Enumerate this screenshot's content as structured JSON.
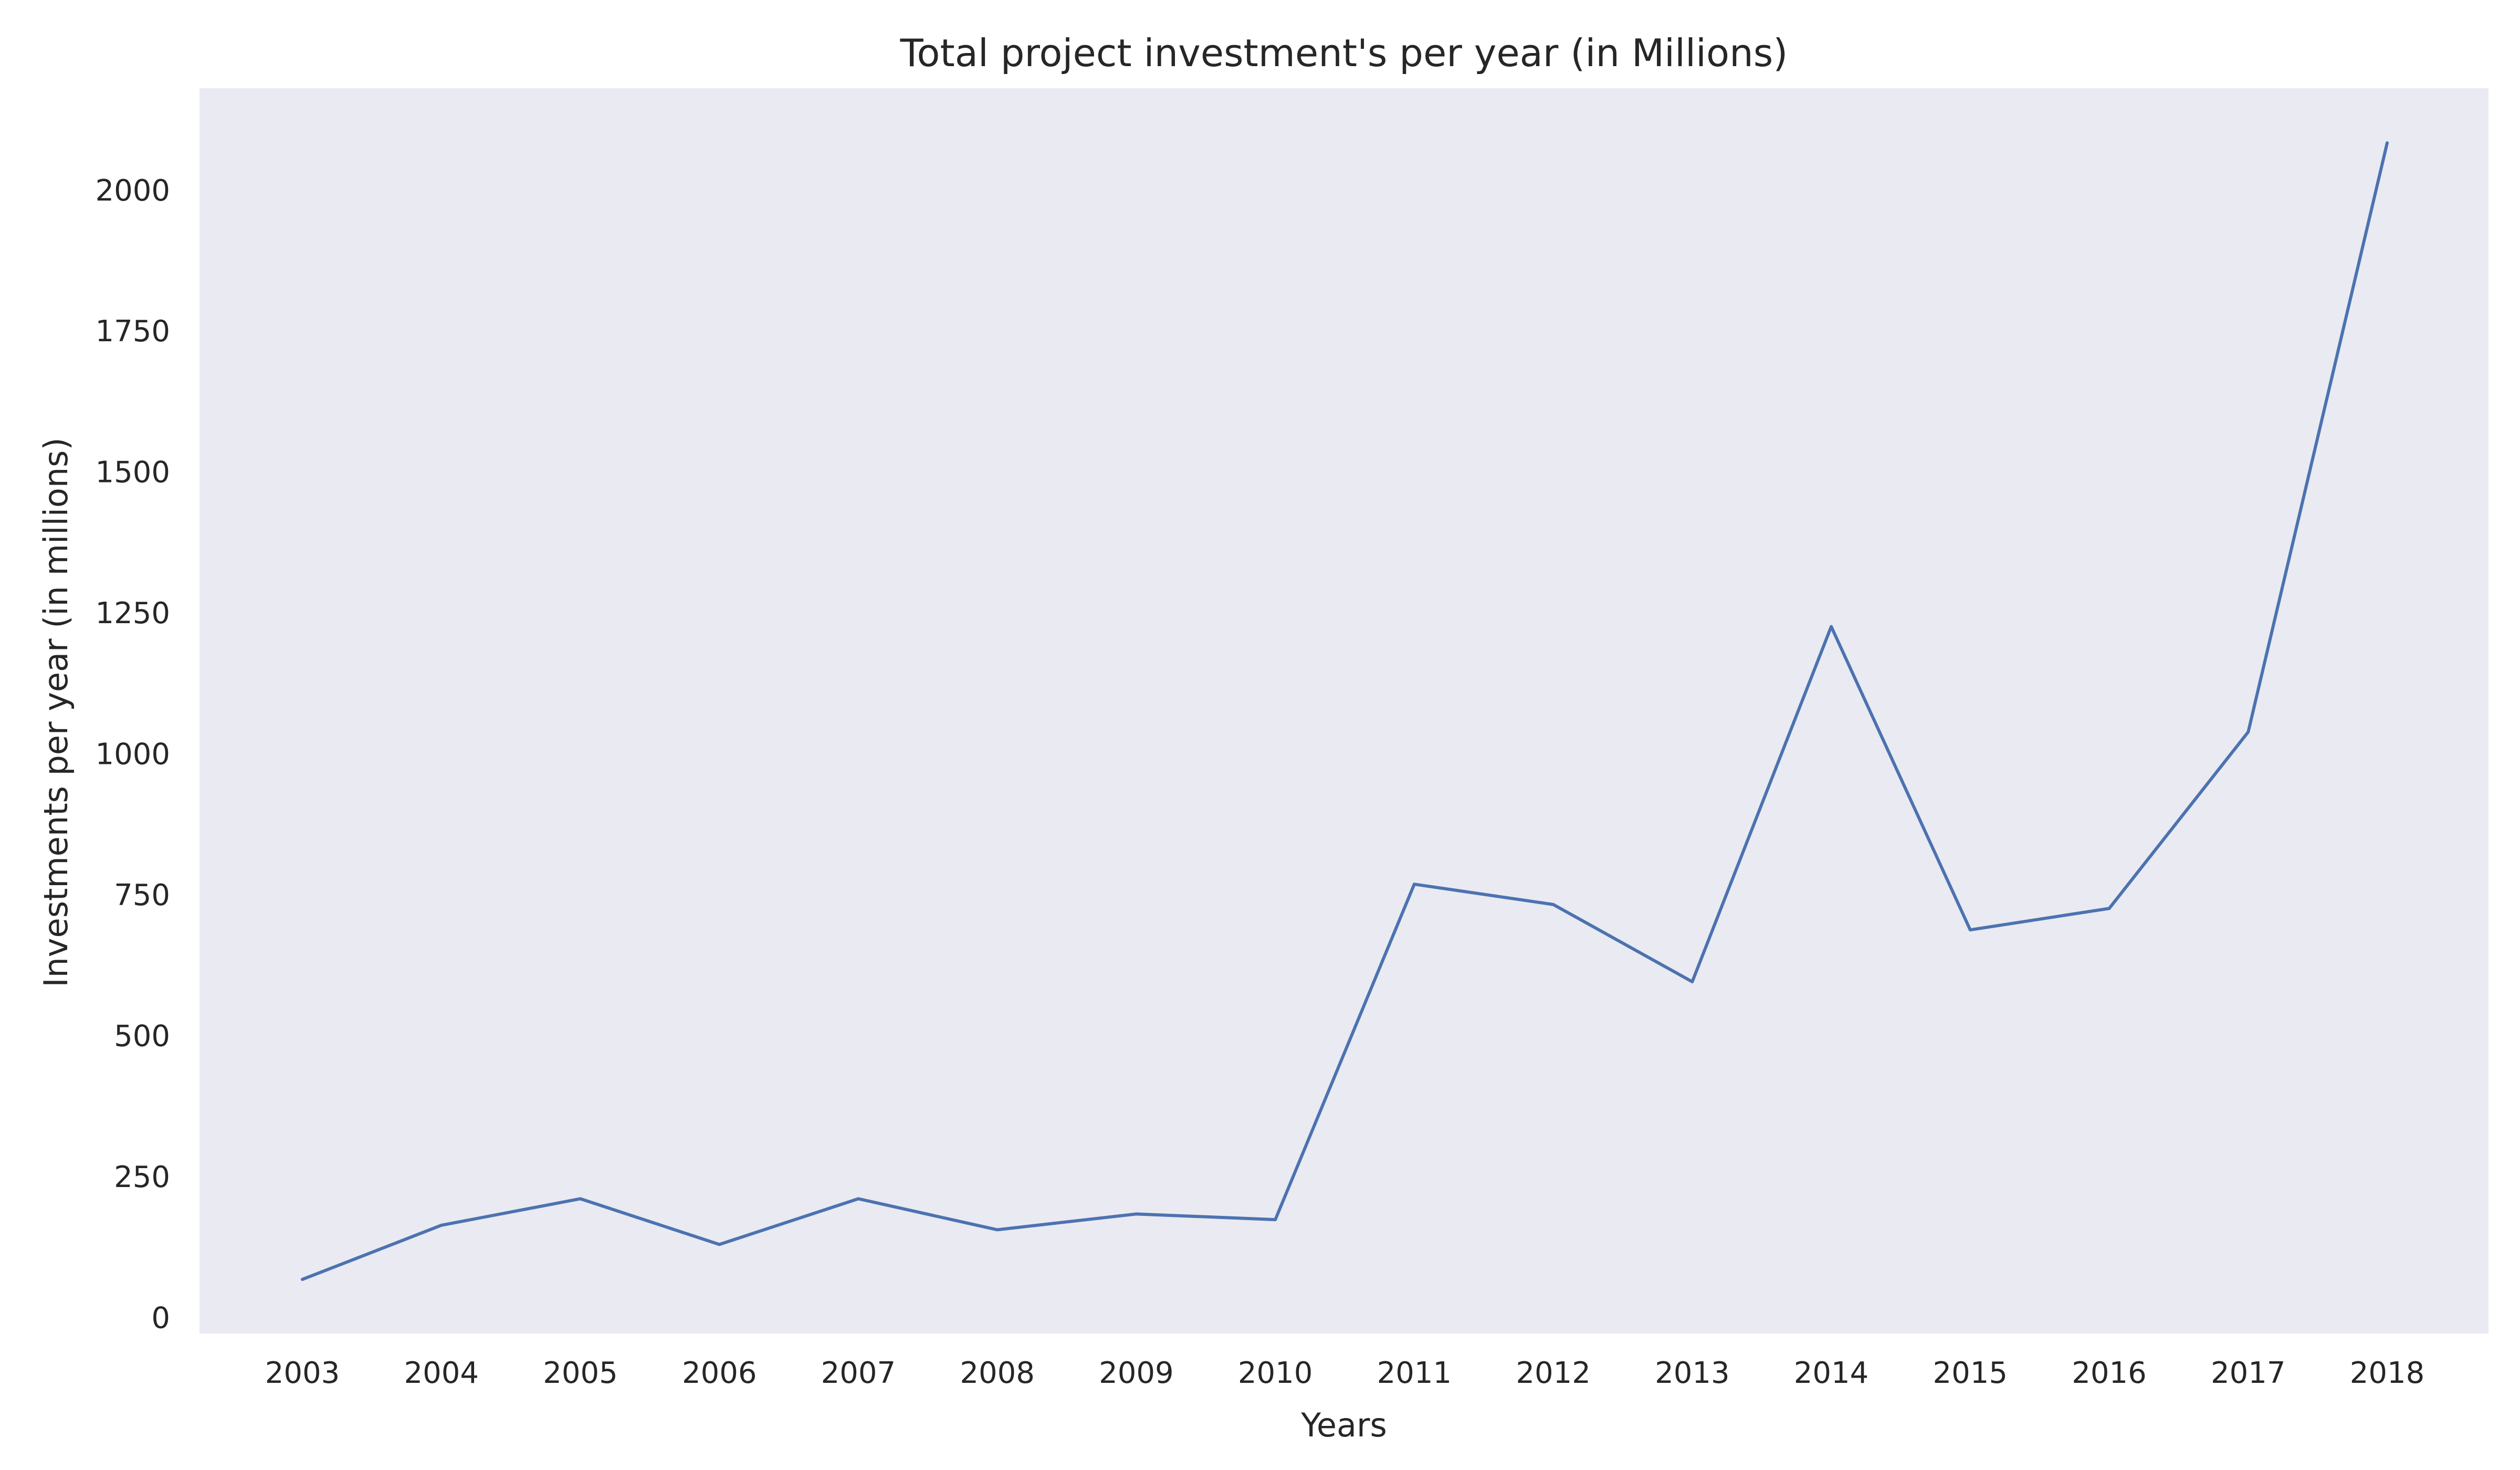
{
  "chart_data": {
    "type": "line",
    "title": "Total project investment's per year (in Millions)",
    "xlabel": "Years",
    "ylabel": "Investments per year (in millions)",
    "categories": [
      "2003",
      "2004",
      "2005",
      "2006",
      "2007",
      "2008",
      "2009",
      "2010",
      "2011",
      "2012",
      "2013",
      "2014",
      "2015",
      "2016",
      "2017",
      "2018"
    ],
    "series": [
      {
        "values": [
          72,
          168,
          215,
          134,
          215,
          160,
          188,
          178,
          773,
          737,
          600,
          1230,
          692,
          730,
          1043,
          2088
        ]
      }
    ],
    "yticks": [
      0,
      250,
      500,
      750,
      1000,
      1250,
      1500,
      1750,
      2000
    ],
    "ylim": [
      -24,
      2185
    ],
    "grid": false,
    "legend": "none",
    "colors": {
      "line": "#4c72b0",
      "plot_background": "#eaeaf2",
      "text": "#262626"
    }
  }
}
